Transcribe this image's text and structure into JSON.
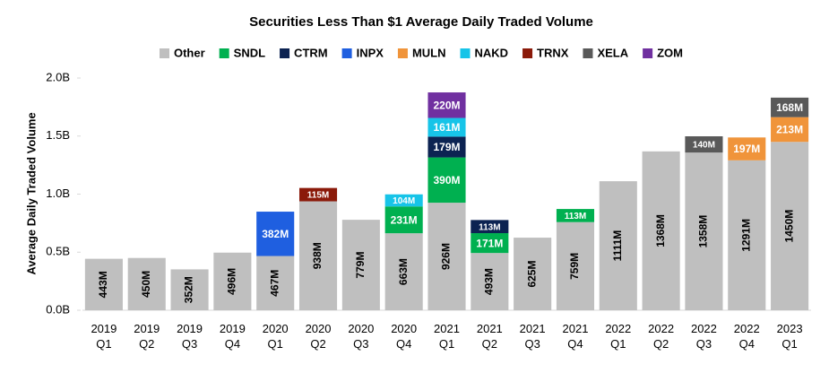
{
  "chart_data": {
    "type": "stacked_bar",
    "title": "Securities Less Than $1 Average Daily Traded Volume",
    "y_label": "Average Daily Traded Volume",
    "categories": [
      "2019 Q1",
      "2019 Q2",
      "2019 Q3",
      "2019 Q4",
      "2020 Q1",
      "2020 Q2",
      "2020 Q3",
      "2020 Q4",
      "2021 Q1",
      "2021 Q2",
      "2021 Q3",
      "2021 Q4",
      "2022 Q1",
      "2022 Q2",
      "2022 Q3",
      "2022 Q4",
      "2023 Q1"
    ],
    "ylim": [
      0,
      2.0
    ],
    "yticks": [
      {
        "value": 0,
        "label": "0.0B"
      },
      {
        "value": 0.5,
        "label": "0.5B"
      },
      {
        "value": 1.0,
        "label": "1.0B"
      },
      {
        "value": 1.5,
        "label": "1.5B"
      },
      {
        "value": 2.0,
        "label": "2.0B"
      }
    ],
    "grid": false,
    "legend": "top",
    "series": [
      {
        "name": "Other",
        "color": "#bfbfbf",
        "values": [
          0.443,
          0.45,
          0.352,
          0.496,
          0.467,
          0.938,
          0.779,
          0.663,
          0.926,
          0.493,
          0.625,
          0.759,
          1.111,
          1.368,
          1.358,
          1.291,
          1.45
        ],
        "value_labels": [
          "443M",
          "450M",
          "352M",
          "496M",
          "467M",
          "938M",
          "779M",
          "663M",
          "926M",
          "493M",
          "625M",
          "759M",
          "1111M",
          "1368M",
          "1358M",
          "1291M",
          "1450M"
        ]
      },
      {
        "name": "SNDL",
        "color": "#00b050",
        "values": [
          null,
          null,
          null,
          null,
          null,
          null,
          null,
          0.231,
          0.39,
          0.171,
          null,
          0.113,
          null,
          null,
          null,
          null,
          null
        ],
        "value_labels": [
          null,
          null,
          null,
          null,
          null,
          null,
          null,
          "231M",
          "390M",
          "171M",
          null,
          "113M",
          null,
          null,
          null,
          null,
          null
        ]
      },
      {
        "name": "CTRM",
        "color": "#0c2352",
        "values": [
          null,
          null,
          null,
          null,
          null,
          null,
          null,
          null,
          0.179,
          0.113,
          null,
          null,
          null,
          null,
          null,
          null,
          null
        ],
        "value_labels": [
          null,
          null,
          null,
          null,
          null,
          null,
          null,
          null,
          "179M",
          "113M",
          null,
          null,
          null,
          null,
          null,
          null,
          null
        ]
      },
      {
        "name": "INPX",
        "color": "#1f5fe0",
        "values": [
          null,
          null,
          null,
          null,
          0.382,
          null,
          null,
          null,
          null,
          null,
          null,
          null,
          null,
          null,
          null,
          null,
          null
        ],
        "value_labels": [
          null,
          null,
          null,
          null,
          "382M",
          null,
          null,
          null,
          null,
          null,
          null,
          null,
          null,
          null,
          null,
          null,
          null
        ]
      },
      {
        "name": "MULN",
        "color": "#f0943a",
        "values": [
          null,
          null,
          null,
          null,
          null,
          null,
          null,
          null,
          null,
          null,
          null,
          null,
          null,
          null,
          null,
          0.197,
          0.213
        ],
        "value_labels": [
          null,
          null,
          null,
          null,
          null,
          null,
          null,
          null,
          null,
          null,
          null,
          null,
          null,
          null,
          null,
          "197M",
          "213M"
        ]
      },
      {
        "name": "NAKD",
        "color": "#17c4e8",
        "values": [
          null,
          null,
          null,
          null,
          null,
          null,
          null,
          0.104,
          0.161,
          null,
          null,
          null,
          null,
          null,
          null,
          null,
          null
        ],
        "value_labels": [
          null,
          null,
          null,
          null,
          null,
          null,
          null,
          "104M",
          "161M",
          null,
          null,
          null,
          null,
          null,
          null,
          null,
          null
        ]
      },
      {
        "name": "TRNX",
        "color": "#8b1a0a",
        "values": [
          null,
          null,
          null,
          null,
          null,
          0.115,
          null,
          null,
          null,
          null,
          null,
          null,
          null,
          null,
          null,
          null,
          null
        ],
        "value_labels": [
          null,
          null,
          null,
          null,
          null,
          "115M",
          null,
          null,
          null,
          null,
          null,
          null,
          null,
          null,
          null,
          null,
          null
        ]
      },
      {
        "name": "XELA",
        "color": "#595959",
        "values": [
          null,
          null,
          null,
          null,
          null,
          null,
          null,
          null,
          null,
          null,
          null,
          null,
          null,
          null,
          0.14,
          null,
          0.168
        ],
        "value_labels": [
          null,
          null,
          null,
          null,
          null,
          null,
          null,
          null,
          null,
          null,
          null,
          null,
          null,
          null,
          "140M",
          null,
          "168M"
        ]
      },
      {
        "name": "ZOM",
        "color": "#7030a0",
        "values": [
          null,
          null,
          null,
          null,
          null,
          null,
          null,
          null,
          0.22,
          null,
          null,
          null,
          null,
          null,
          null,
          null,
          null
        ],
        "value_labels": [
          null,
          null,
          null,
          null,
          null,
          null,
          null,
          null,
          "220M",
          null,
          null,
          null,
          null,
          null,
          null,
          null,
          null
        ]
      }
    ]
  }
}
